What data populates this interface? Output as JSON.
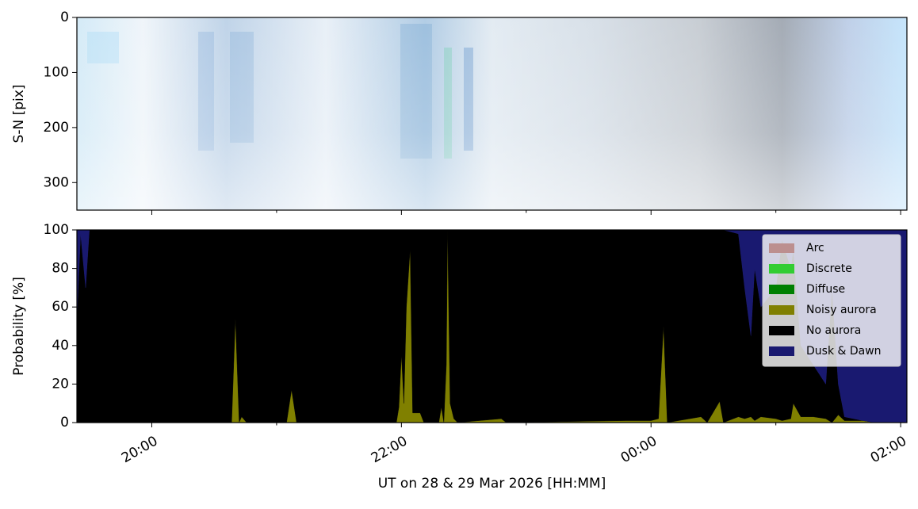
{
  "chart_data": [
    {
      "type": "image",
      "ylabel": "S-N [pix]",
      "ylim": [
        350,
        0
      ],
      "yticks": [
        0,
        100,
        200,
        300
      ]
    },
    {
      "type": "area",
      "xlabel": "UT on 28 & 29 Mar 2026 [HH:MM]",
      "ylabel": "Probability [%]",
      "xlim": [
        19.4,
        26.05
      ],
      "xticks": [
        {
          "value": 20,
          "label": "20:00"
        },
        {
          "value": 22,
          "label": "22:00"
        },
        {
          "value": 24,
          "label": "00:00"
        },
        {
          "value": 26,
          "label": "02:00"
        }
      ],
      "xminorticks": [
        21,
        23,
        25
      ],
      "ylim": [
        0,
        100
      ],
      "yticks": [
        0,
        20,
        40,
        60,
        80,
        100
      ],
      "legend": "upper right",
      "x": [
        19.4,
        19.43,
        19.47,
        19.5,
        19.6,
        20.0,
        20.4,
        20.64,
        20.67,
        20.7,
        20.72,
        20.76,
        21.08,
        21.12,
        21.16,
        21.6,
        21.96,
        21.98,
        22.0,
        22.02,
        22.04,
        22.07,
        22.09,
        22.15,
        22.18,
        22.3,
        22.32,
        22.34,
        22.36,
        22.37,
        22.39,
        22.42,
        22.45,
        22.8,
        22.84,
        23.8,
        24.0,
        24.06,
        24.1,
        24.13,
        24.4,
        24.45,
        24.55,
        24.58,
        24.7,
        24.75,
        24.8,
        24.83,
        24.88,
        25.0,
        25.05,
        25.12,
        25.14,
        25.2,
        25.3,
        25.4,
        25.45,
        25.5,
        25.55,
        25.7,
        25.8,
        26.05
      ],
      "series": [
        {
          "name": "Arc",
          "color": "#bc8f8f",
          "values": [
            0,
            0,
            0,
            0,
            0,
            0,
            0,
            0,
            0,
            0,
            0,
            0,
            0,
            0,
            0,
            0,
            0,
            0,
            0,
            0,
            0,
            0,
            0,
            0,
            0,
            0,
            0,
            0,
            0,
            0,
            0,
            0,
            0,
            0,
            0,
            0,
            0,
            0,
            0,
            0,
            0,
            0,
            0,
            0,
            0,
            0,
            0,
            0,
            0,
            0,
            0,
            0,
            0,
            0,
            0,
            0,
            0,
            0,
            0,
            0,
            0,
            0
          ]
        },
        {
          "name": "Discrete",
          "color": "#32cd32",
          "values": [
            0,
            0,
            0,
            0,
            0,
            0,
            0,
            0,
            0,
            0,
            0,
            0,
            0,
            0,
            0,
            0,
            0,
            0,
            0,
            0,
            0,
            0,
            0,
            0,
            0,
            0,
            0,
            0,
            0,
            0,
            0,
            0,
            0,
            0,
            0,
            0,
            0,
            0,
            0,
            0,
            0,
            0,
            0,
            0,
            0,
            0,
            0,
            0,
            0,
            0,
            0,
            0,
            0,
            0,
            0,
            0,
            0,
            0,
            0,
            0,
            0,
            0
          ]
        },
        {
          "name": "Diffuse",
          "color": "#008000",
          "values": [
            0,
            0,
            0,
            0,
            0,
            0,
            0,
            0,
            0,
            0,
            0,
            0,
            0,
            0,
            0,
            0,
            0,
            0,
            0,
            0,
            0,
            0,
            0,
            0,
            0,
            0,
            0,
            0,
            0,
            0,
            0,
            0,
            0,
            0,
            0,
            0,
            0,
            0,
            0,
            0,
            0,
            0,
            0,
            0,
            0,
            0,
            0,
            0,
            0,
            0,
            0,
            0,
            0,
            0,
            0,
            0,
            0,
            0,
            0,
            0,
            0,
            0
          ]
        },
        {
          "name": "Noisy aurora",
          "color": "#808000",
          "values": [
            0,
            0,
            0,
            0,
            0,
            0,
            0,
            0,
            54,
            0,
            3,
            0,
            0,
            17,
            0,
            0,
            0,
            8,
            35,
            10,
            60,
            90,
            5,
            5,
            0,
            0,
            8,
            0,
            30,
            100,
            10,
            2,
            0,
            2,
            0,
            1,
            1,
            2,
            50,
            0,
            3,
            0,
            11,
            0,
            3,
            2,
            3,
            1,
            3,
            2,
            1,
            2,
            10,
            3,
            3,
            2,
            0,
            4,
            1,
            1,
            0,
            0
          ]
        },
        {
          "name": "No aurora",
          "color": "#000000",
          "values": [
            55,
            98,
            70,
            100,
            100,
            100,
            100,
            100,
            46,
            100,
            97,
            100,
            100,
            83,
            100,
            100,
            100,
            92,
            65,
            90,
            40,
            10,
            95,
            95,
            100,
            100,
            92,
            100,
            70,
            0,
            90,
            98,
            100,
            98,
            100,
            99,
            99,
            98,
            50,
            100,
            97,
            100,
            89,
            100,
            95,
            68,
            42,
            79,
            57,
            68,
            94,
            78,
            80,
            37,
            27,
            18,
            70,
            16,
            2,
            0,
            0,
            0
          ]
        },
        {
          "name": "Dusk & Dawn",
          "color": "#191970",
          "values": [
            45,
            2,
            30,
            0,
            0,
            0,
            0,
            0,
            0,
            0,
            0,
            0,
            0,
            0,
            0,
            0,
            0,
            0,
            0,
            0,
            0,
            0,
            0,
            0,
            0,
            0,
            0,
            0,
            0,
            0,
            0,
            0,
            0,
            0,
            0,
            0,
            0,
            0,
            0,
            0,
            0,
            0,
            0,
            0,
            2,
            30,
            55,
            20,
            40,
            30,
            5,
            20,
            10,
            60,
            70,
            80,
            30,
            80,
            97,
            99,
            100,
            100
          ]
        }
      ]
    }
  ]
}
